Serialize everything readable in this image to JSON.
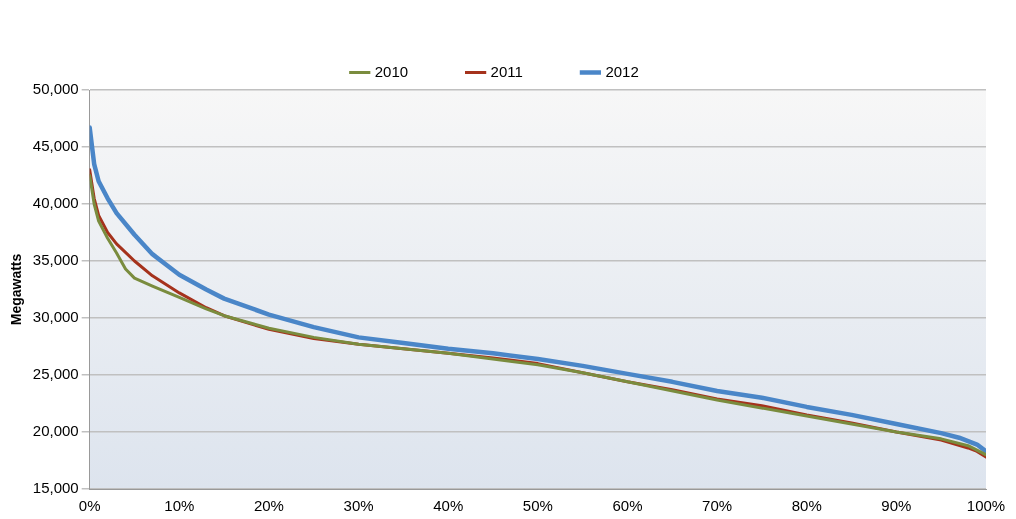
{
  "chart_data": {
    "type": "line",
    "ylabel": "Megawatts",
    "xlim": [
      0,
      100
    ],
    "xticks": [
      {
        "value": 0,
        "label": "0%"
      },
      {
        "value": 10,
        "label": "10%"
      },
      {
        "value": 20,
        "label": "20%"
      },
      {
        "value": 30,
        "label": "30%"
      },
      {
        "value": 40,
        "label": "40%"
      },
      {
        "value": 50,
        "label": "50%"
      },
      {
        "value": 60,
        "label": "60%"
      },
      {
        "value": 70,
        "label": "70%"
      },
      {
        "value": 80,
        "label": "80%"
      },
      {
        "value": 90,
        "label": "90%"
      },
      {
        "value": 100,
        "label": "100%"
      }
    ],
    "ylim": [
      15000,
      50000
    ],
    "yticks": [
      {
        "value": 15000,
        "label": "15,000"
      },
      {
        "value": 20000,
        "label": "20,000"
      },
      {
        "value": 25000,
        "label": "25,000"
      },
      {
        "value": 30000,
        "label": "30,000"
      },
      {
        "value": 35000,
        "label": "35,000"
      },
      {
        "value": 40000,
        "label": "40,000"
      },
      {
        "value": 45000,
        "label": "45,000"
      },
      {
        "value": 50000,
        "label": "50,000"
      }
    ],
    "grid": "y",
    "legend": "top",
    "marker": "none",
    "line_style": "solid",
    "series": [
      {
        "name": "2010",
        "color": "#7a8c3e",
        "x": [
          0,
          0.5,
          1,
          2,
          3,
          4,
          5,
          7,
          10,
          13,
          15,
          20,
          25,
          30,
          40,
          50,
          55,
          60,
          70,
          80,
          90,
          95,
          98,
          100
        ],
        "values": [
          42500,
          40000,
          38500,
          37000,
          35700,
          34300,
          33500,
          32800,
          31800,
          30800,
          30200,
          29100,
          28300,
          27700,
          26900,
          25900,
          25200,
          24400,
          22800,
          21400,
          20000,
          19400,
          18800,
          18000
        ]
      },
      {
        "name": "2011",
        "color": "#a5321c",
        "x": [
          0,
          0.5,
          1,
          2,
          3,
          5,
          7,
          10,
          13,
          15,
          20,
          25,
          30,
          35,
          40,
          45,
          50,
          55,
          60,
          65,
          70,
          75,
          80,
          85,
          90,
          95,
          98,
          99,
          100
        ],
        "values": [
          43000,
          40500,
          39000,
          37500,
          36500,
          35000,
          33700,
          32200,
          30900,
          30200,
          29000,
          28200,
          27700,
          27300,
          26900,
          26500,
          26000,
          25200,
          24400,
          23700,
          22900,
          22300,
          21500,
          20800,
          20000,
          19300,
          18600,
          18300,
          17800
        ]
      },
      {
        "name": "2012",
        "color": "#4a86c8",
        "x": [
          0,
          0.5,
          1,
          2,
          3,
          5,
          7,
          10,
          13,
          15,
          20,
          25,
          30,
          35,
          40,
          45,
          50,
          55,
          60,
          65,
          70,
          75,
          80,
          85,
          90,
          95,
          97,
          98,
          99,
          100
        ],
        "values": [
          46700,
          43500,
          42000,
          40500,
          39200,
          37300,
          35600,
          33800,
          32500,
          31700,
          30300,
          29200,
          28300,
          27800,
          27300,
          26900,
          26400,
          25800,
          25100,
          24400,
          23600,
          23000,
          22200,
          21500,
          20700,
          19900,
          19500,
          19200,
          18900,
          18300
        ]
      }
    ]
  }
}
